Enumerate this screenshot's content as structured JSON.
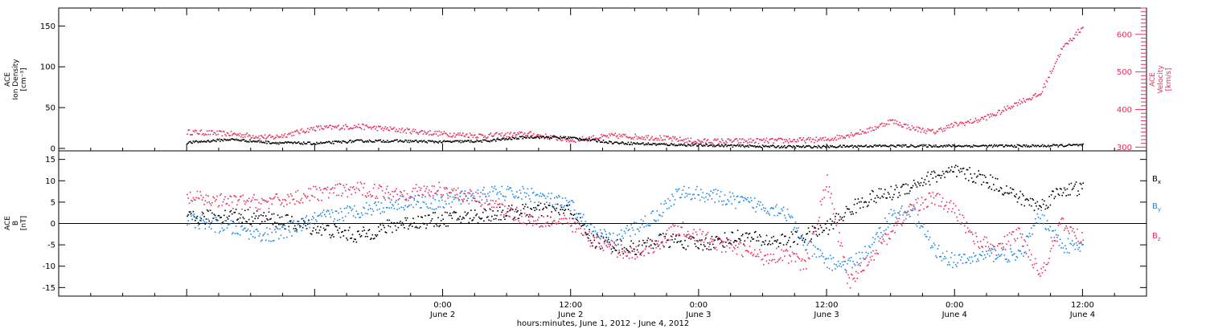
{
  "chart_data": [
    {
      "type": "scatter",
      "panel": "top",
      "ylabel_lines": [
        "ACE",
        "Ion Density",
        "[cm⁻³]"
      ],
      "ylim": [
        -3,
        172
      ],
      "yticks": [
        0,
        50,
        100,
        150
      ],
      "y2label_lines": [
        "ACE",
        "Velocity",
        "[km/s]"
      ],
      "y2lim": [
        290,
        670
      ],
      "y2ticks": [
        300,
        400,
        500,
        600
      ],
      "colors": {
        "density": "#000000",
        "velocity": "#e8305f"
      },
      "series": [
        {
          "axis": "left",
          "x": [
            -24,
            -20,
            -16,
            -12,
            -8,
            -4,
            0,
            4,
            8,
            12,
            16,
            20,
            24,
            28,
            32,
            36,
            40,
            44,
            48,
            52,
            56,
            60
          ],
          "values": [
            7,
            11,
            7,
            6,
            9,
            9,
            8,
            9,
            14,
            13,
            7,
            5,
            4,
            3,
            2,
            2,
            3,
            3,
            3,
            3,
            3,
            4
          ]
        },
        {
          "axis": "right",
          "x": [
            -24,
            -20,
            -16,
            -12,
            -8,
            -4,
            0,
            4,
            8,
            12,
            16,
            20,
            24,
            28,
            32,
            36,
            40,
            42,
            44,
            46,
            48,
            50,
            52,
            54,
            56,
            58,
            60
          ],
          "values": [
            340,
            335,
            325,
            350,
            355,
            345,
            335,
            330,
            335,
            318,
            330,
            325,
            315,
            316,
            317,
            320,
            345,
            370,
            350,
            340,
            360,
            370,
            390,
            420,
            440,
            560,
            620
          ]
        }
      ]
    },
    {
      "type": "scatter",
      "panel": "bottom",
      "ylabel_lines": [
        "ACE",
        "B",
        "[nT]"
      ],
      "ylim": [
        -17,
        17
      ],
      "yticks": [
        -15,
        -10,
        -5,
        0,
        5,
        10,
        15
      ],
      "x": [
        -24,
        -20,
        -16,
        -12,
        -8,
        -4,
        0,
        4,
        8,
        12,
        14,
        16,
        18,
        20,
        22,
        24,
        26,
        28,
        30,
        32,
        34,
        36,
        38,
        40,
        42,
        44,
        46,
        48,
        50,
        52,
        54,
        56,
        58,
        60
      ],
      "series": [
        {
          "name": "Bx",
          "color": "#000000",
          "values": [
            1,
            2,
            1,
            -1,
            -3,
            0,
            1,
            2,
            3,
            3,
            -4,
            -5,
            -6,
            -4,
            -4,
            -5,
            -4,
            -3,
            -4,
            -4,
            -3,
            -1,
            3,
            6,
            7,
            9,
            11,
            12,
            11,
            9,
            6,
            4,
            8,
            8
          ]
        },
        {
          "name": "By",
          "color": "#1e88e5",
          "values": [
            1,
            -1,
            -3,
            1,
            3,
            5,
            5,
            7,
            7,
            4,
            -2,
            -4,
            -1,
            2,
            7,
            7,
            6,
            5,
            4,
            3,
            -5,
            -9,
            -10,
            -6,
            2,
            3,
            -6,
            -9,
            -8,
            -7,
            -8,
            2,
            -5,
            -6
          ]
        },
        {
          "name": "Bz",
          "color": "#e8305f",
          "values": [
            6,
            5,
            5,
            7,
            8,
            7,
            8,
            5,
            1,
            0,
            -4,
            -6,
            -7,
            -5,
            -1,
            -3,
            -5,
            -6,
            -8,
            -7,
            -10,
            10,
            -14,
            -8,
            -2,
            4,
            6,
            3,
            -4,
            -6,
            -2,
            -12,
            0,
            -4
          ]
        }
      ]
    }
  ],
  "xaxis": {
    "xlim": [
      -36,
      66
    ],
    "ticks": [
      {
        "x": 0,
        "time": "0:00",
        "date": "June 2"
      },
      {
        "x": 12,
        "time": "12:00",
        "date": "June 2"
      },
      {
        "x": 24,
        "time": "0:00",
        "date": "June 3"
      },
      {
        "x": 36,
        "time": "12:00",
        "date": "June 3"
      },
      {
        "x": 48,
        "time": "0:00",
        "date": "June 4"
      },
      {
        "x": 60,
        "time": "12:00",
        "date": "June 4"
      }
    ],
    "title": "hours:minutes, June  1, 2012 - June  4, 2012"
  }
}
